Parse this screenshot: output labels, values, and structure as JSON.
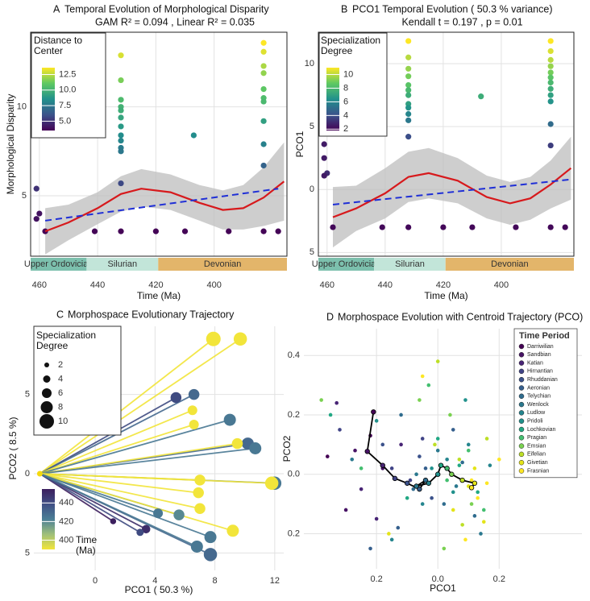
{
  "chart_data": [
    {
      "type": "scatter",
      "panel": "A",
      "title": "Temporal Evolution of Morphological Disparity",
      "subtitle": "GAM R² = 0.094 , Linear R² = 0.035",
      "xlabel": "Time (Ma)",
      "ylabel": "Morphological Disparity",
      "xlim": [
        463,
        375
      ],
      "ylim": [
        1.6,
        14.2
      ],
      "xticks": [
        460,
        440,
        420,
        400
      ],
      "yticks": [
        5,
        10
      ],
      "grid": true,
      "frame": true,
      "points": {
        "x": [
          461,
          461,
          460,
          432,
          432,
          432,
          432,
          432,
          432,
          432,
          432,
          432,
          432,
          432,
          432,
          432,
          407,
          383,
          383,
          383,
          383,
          383,
          383,
          383,
          383,
          383,
          383,
          383,
          458,
          441,
          420,
          410,
          395,
          378
        ],
        "values": [
          3.7,
          5.4,
          4.0,
          12.9,
          11.5,
          10.4,
          10.0,
          9.8,
          9.4,
          8.9,
          8.4,
          8.1,
          7.7,
          7.5,
          5.7,
          3.0,
          8.4,
          13.6,
          13.1,
          12.3,
          11.9,
          11.0,
          10.5,
          10.3,
          9.2,
          7.9,
          6.7,
          3.0,
          3.0,
          3.0,
          3.0,
          3.0,
          3.0,
          3.0
        ],
        "color_values": [
          4,
          5,
          4,
          13,
          11.5,
          10.4,
          10,
          9.8,
          9.4,
          8.9,
          8.4,
          8.1,
          7.7,
          7.5,
          5.7,
          3.6,
          8.4,
          13.6,
          13.1,
          12.3,
          11.9,
          11,
          10.5,
          10.3,
          9.2,
          7.9,
          6.7,
          3.6,
          3.6,
          3.6,
          3.6,
          3.6,
          3.6,
          3.6
        ]
      },
      "colorbar": {
        "title": "Distance to Center",
        "clim": [
          3.5,
          13.6
        ],
        "colors": [
          "#440154",
          "#3b528b",
          "#21918c",
          "#5ec962",
          "#fde725"
        ],
        "ticks": [
          {
            "value": 5,
            "label": "5.0"
          },
          7.5,
          {
            "value": 10,
            "label": "10.0"
          },
          12.5
        ]
      },
      "smooth": {
        "x": [
          458,
          450,
          440,
          432,
          425,
          415,
          405,
          397,
          390,
          383,
          376
        ],
        "values": [
          3.0,
          3.5,
          4.3,
          5.1,
          5.4,
          5.2,
          4.6,
          4.2,
          4.3,
          4.9,
          5.8
        ],
        "upper": [
          4.3,
          4.5,
          5.2,
          6.1,
          6.5,
          6.2,
          5.6,
          5.3,
          5.6,
          6.6,
          8.0
        ],
        "lower": [
          1.7,
          2.5,
          3.4,
          4.1,
          4.4,
          4.2,
          3.6,
          3.1,
          3.1,
          3.3,
          3.6
        ],
        "color": "#d7191c",
        "band_color": "#bdbdbd"
      },
      "linear": {
        "x": [
          458,
          378
        ],
        "values": [
          3.6,
          5.4
        ],
        "color": "#1f2fd6",
        "linestyle": "dashed"
      },
      "periods": [
        {
          "name": "Upper Ordovician",
          "start": 463,
          "end": 443.8,
          "color": "#7cc0ad"
        },
        {
          "name": "Silurian",
          "start": 443.8,
          "end": 419.2,
          "color": "#c2e5d9"
        },
        {
          "name": "Devonian",
          "start": 419.2,
          "end": 375,
          "color": "#e3b56a"
        }
      ]
    },
    {
      "type": "scatter",
      "panel": "B",
      "title": "PCO1 Temporal Evolution ( 50.3 % variance)",
      "subtitle": "Kendall t = 0.197 , p = 0.01",
      "xlabel": "Time (Ma)",
      "ylabel": "PCO1",
      "xlim": [
        463,
        375
      ],
      "ylim": [
        -5.3,
        12.5
      ],
      "xticks": [
        460,
        440,
        420,
        400
      ],
      "yticks": [
        {
          "value": -5,
          "label": "5"
        },
        0,
        5,
        10
      ],
      "grid": true,
      "frame": true,
      "points": {
        "x": [
          461,
          461,
          460,
          461,
          432,
          432,
          432,
          432,
          432,
          432,
          432,
          432,
          432,
          432,
          432,
          432,
          432,
          407,
          383,
          383,
          383,
          383,
          383,
          383,
          383,
          383,
          383,
          383,
          383,
          383,
          383,
          458,
          441,
          420,
          410,
          395,
          378
        ],
        "values": [
          3.6,
          2.5,
          1.3,
          1.1,
          11.8,
          10.5,
          9.6,
          9.0,
          8.3,
          7.9,
          7.5,
          6.8,
          6.5,
          6.0,
          5.5,
          4.2,
          -3.0,
          7.4,
          11.8,
          11.0,
          10.3,
          9.8,
          9.3,
          8.9,
          8.5,
          8.0,
          7.5,
          7.0,
          5.2,
          3.5,
          -3.0,
          -3.0,
          -3.0,
          -3.0,
          -3.0,
          -3.0,
          -3.0
        ],
        "color_values": [
          2.5,
          2.5,
          3,
          2.5,
          11,
          10,
          9.5,
          9,
          8.5,
          8,
          7.5,
          7,
          6.5,
          6,
          5.5,
          4,
          2,
          7.5,
          11,
          10.5,
          10,
          9.5,
          9,
          8.5,
          8,
          7.5,
          7,
          6.5,
          5,
          3.5,
          2,
          2,
          2,
          2,
          2,
          2,
          2
        ]
      },
      "colorbar": {
        "title": "Specialization Degree",
        "clim": [
          1.8,
          11
        ],
        "colors": [
          "#440154",
          "#3b528b",
          "#21918c",
          "#5ec962",
          "#fde725"
        ],
        "ticks": [
          2,
          4,
          6,
          8,
          10
        ]
      },
      "smooth": {
        "x": [
          458,
          450,
          440,
          432,
          425,
          415,
          405,
          397,
          390,
          383,
          376
        ],
        "values": [
          -2.2,
          -1.5,
          -0.3,
          1.0,
          1.3,
          0.7,
          -0.6,
          -1.1,
          -0.7,
          0.4,
          1.7
        ],
        "upper": [
          0.2,
          0.3,
          1.7,
          3.0,
          3.3,
          2.5,
          1.1,
          0.6,
          1.0,
          2.3,
          4.2
        ],
        "lower": [
          -4.6,
          -3.3,
          -2.3,
          -1.0,
          -0.7,
          -1.1,
          -2.3,
          -2.8,
          -2.4,
          -1.5,
          -0.8
        ],
        "color": "#d7191c",
        "band_color": "#bdbdbd"
      },
      "linear": {
        "x": [
          458,
          376
        ],
        "values": [
          -1.2,
          0.8
        ],
        "color": "#1f2fd6",
        "linestyle": "dashed"
      },
      "periods": [
        {
          "name": "Upper Ordovician",
          "start": 463,
          "end": 443.8,
          "color": "#7cc0ad"
        },
        {
          "name": "Silurian",
          "start": 443.8,
          "end": 419.2,
          "color": "#c2e5d9"
        },
        {
          "name": "Devonian",
          "start": 419.2,
          "end": 375,
          "color": "#e3b56a"
        }
      ]
    },
    {
      "type": "trajectory",
      "panel": "C",
      "title": "Morphospace Evolutionary Trajectory",
      "xlabel": "PCO1 ( 50.3 %)",
      "ylabel": "PCO2 ( 8.5 %)",
      "xlim": [
        -4.1,
        12.6
      ],
      "ylim": [
        -6.1,
        9.3
      ],
      "xticks": [
        0,
        4,
        8,
        12
      ],
      "yticks": [
        {
          "value": -5,
          "label": "5"
        },
        0,
        5
      ],
      "grid": true,
      "origin": {
        "x": -3.7,
        "y": 0
      },
      "origin_color": "#f5d90f",
      "x": [
        7.9,
        9.7,
        5.4,
        6.6,
        6.6,
        6.5,
        9.0,
        10.2,
        9.5,
        10.7,
        12.0,
        11.8,
        7.0,
        6.9,
        7.0,
        5.6,
        4.2,
        3.4,
        1.2,
        3.0,
        9.2,
        7.7,
        7.7,
        6.8
      ],
      "values": [
        8.5,
        8.5,
        4.8,
        5.0,
        3.1,
        4.0,
        3.4,
        1.9,
        1.9,
        1.6,
        -0.6,
        -0.6,
        -0.4,
        -1.2,
        -2.2,
        -2.6,
        -2.5,
        -3.5,
        -3.0,
        -3.7,
        -3.6,
        -4.0,
        -5.1,
        -4.6
      ],
      "sizes": [
        10,
        9,
        7,
        7,
        6,
        6,
        8,
        8,
        7,
        8,
        9,
        9,
        7,
        7,
        7,
        7,
        6,
        5,
        3,
        4,
        8,
        8,
        9,
        8
      ],
      "times": [
        385,
        385,
        440,
        430,
        385,
        385,
        425,
        430,
        385,
        425,
        425,
        385,
        390,
        385,
        385,
        420,
        425,
        450,
        455,
        440,
        385,
        425,
        430,
        425
      ],
      "size_legend": {
        "title": "Specialization Degree",
        "values": [
          2,
          4,
          6,
          8,
          10
        ]
      },
      "colorbar": {
        "title": "Time (Ma)",
        "clim": [
          390,
          455
        ],
        "colors": [
          "#f2e53a",
          "#9fc07a",
          "#4b7f96",
          "#3f4f84",
          "#3c1f5e"
        ],
        "ticks": [
          440,
          420,
          400
        ]
      }
    },
    {
      "type": "scatter",
      "panel": "D",
      "title": "Morphospace Evolution with Centroid Trajectory (PCO)",
      "xlabel": "PCO1",
      "ylabel": "PCO2",
      "xlim": [
        -0.437,
        0.47
      ],
      "ylim": [
        -0.318,
        0.49
      ],
      "xticks": [
        {
          "value": -0.2,
          "label": "0.2"
        },
        {
          "value": 0,
          "label": "0.0"
        },
        0.2
      ],
      "yticks": [
        {
          "value": -0.2,
          "label": "0.2"
        },
        {
          "value": 0,
          "label": "0.0"
        },
        0.2,
        0.4
      ],
      "grid": true,
      "legend_title": "Time Period",
      "legend": "top-right",
      "series": [
        {
          "name": "Darriwilian",
          "color": "#440154",
          "x": [
            -0.22,
            -0.36
          ],
          "values": [
            0.13,
            0.06
          ]
        },
        {
          "name": "Sandbian",
          "color": "#471365",
          "x": [
            -0.27,
            -0.18,
            -0.3
          ],
          "values": [
            0.08,
            0.02,
            -0.12
          ]
        },
        {
          "name": "Katian",
          "color": "#482475",
          "x": [
            -0.33,
            -0.25,
            -0.12,
            -0.2
          ],
          "values": [
            0.24,
            -0.05,
            0.1,
            -0.15
          ]
        },
        {
          "name": "Hirnantian",
          "color": "#414487",
          "x": [
            -0.15,
            -0.09,
            -0.05,
            -0.32
          ],
          "values": [
            0.02,
            -0.02,
            0.12,
            0.15
          ]
        },
        {
          "name": "Rhuddanian",
          "color": "#3b528b",
          "x": [
            -0.1,
            -0.06,
            -0.02,
            -0.18
          ],
          "values": [
            -0.03,
            0.06,
            -0.08,
            0.1
          ]
        },
        {
          "name": "Aeronian",
          "color": "#355f8d",
          "x": [
            -0.13,
            -0.04,
            0.05,
            -0.22
          ],
          "values": [
            -0.18,
            0.02,
            0.15,
            -0.25
          ]
        },
        {
          "name": "Telychian",
          "color": "#2f6c8e",
          "x": [
            -0.08,
            0.02,
            0.08,
            -0.12,
            0.12
          ],
          "values": [
            -0.05,
            -0.1,
            0.04,
            0.2,
            -0.14
          ]
        },
        {
          "name": "Wenlock",
          "color": "#2a788e",
          "x": [
            -0.07,
            0.0,
            0.06,
            -0.28,
            0.14
          ],
          "values": [
            0.0,
            0.08,
            -0.04,
            0.05,
            -0.2
          ]
        },
        {
          "name": "Ludlow",
          "color": "#25858e",
          "x": [
            -0.05,
            0.03,
            0.1,
            -0.15,
            0.17
          ],
          "values": [
            -0.1,
            0.05,
            0.1,
            -0.22,
            0.03
          ]
        },
        {
          "name": "Pridoli",
          "color": "#21918c",
          "x": [
            -0.02,
            0.05,
            -0.2,
            0.09
          ],
          "values": [
            0.02,
            -0.06,
            0.18,
            0.25
          ]
        },
        {
          "name": "Lochkovian",
          "color": "#22a884",
          "x": [
            0.0,
            0.07,
            -0.1,
            0.13,
            -0.35
          ],
          "values": [
            0.12,
            0.03,
            -0.08,
            -0.06,
            0.2
          ]
        },
        {
          "name": "Pragian",
          "color": "#44bf70",
          "x": [
            0.03,
            0.1,
            -0.03,
            0.15,
            -0.25
          ],
          "values": [
            -0.02,
            0.08,
            0.3,
            -0.12,
            0.02
          ]
        },
        {
          "name": "Emsian",
          "color": "#7ad151",
          "x": [
            0.04,
            -0.06,
            0.11,
            0.02,
            -0.38
          ],
          "values": [
            0.2,
            0.25,
            -0.1,
            -0.25,
            0.25
          ]
        },
        {
          "name": "Eifelian",
          "color": "#bddf26",
          "x": [
            0.07,
            0.0,
            -0.01,
            0.16,
            0.08
          ],
          "values": [
            0.05,
            0.38,
            0.1,
            0.12,
            -0.17
          ]
        },
        {
          "name": "Givetian",
          "color": "#e4e419",
          "x": [
            0.1,
            0.12,
            0.15,
            0.05,
            -0.16
          ],
          "values": [
            -0.04,
            0.02,
            -0.16,
            -0.12,
            -0.2
          ]
        },
        {
          "name": "Frasnian",
          "color": "#fde725",
          "x": [
            0.13,
            0.11,
            0.16,
            -0.05,
            0.09,
            0.2
          ],
          "values": [
            -0.08,
            -0.02,
            -0.03,
            0.33,
            -0.22,
            0.05
          ]
        }
      ],
      "centroid": {
        "x": [
          -0.21,
          -0.23,
          -0.18,
          -0.14,
          -0.1,
          -0.06,
          -0.04,
          -0.07,
          -0.03,
          0.0,
          0.01,
          0.03,
          0.045,
          0.08,
          0.12,
          0.11
        ],
        "values": [
          0.21,
          0.077,
          0.03,
          -0.014,
          -0.03,
          -0.05,
          -0.02,
          -0.04,
          -0.03,
          0.0,
          0.03,
          0.02,
          0.0,
          -0.02,
          -0.03,
          -0.045
        ],
        "color": "#000000"
      }
    }
  ]
}
